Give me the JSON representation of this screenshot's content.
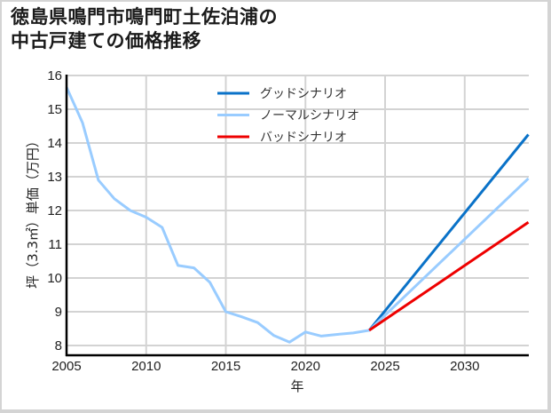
{
  "title": {
    "line1": "徳島県鳴門市鳴門町土佐泊浦の",
    "line2": "中古戸建ての価格推移"
  },
  "colors": {
    "good": "#0a72c8",
    "normal": "#99ccff",
    "bad": "#ee0000",
    "grid": "#d3d3d3",
    "axis": "#000000"
  },
  "legend": [
    {
      "key": "good",
      "label": "グッドシナリオ"
    },
    {
      "key": "normal",
      "label": "ノーマルシナリオ"
    },
    {
      "key": "bad",
      "label": "バッドシナリオ"
    }
  ],
  "chart_data": {
    "type": "line",
    "title": "徳島県鳴門市鳴門町土佐泊浦の中古戸建ての価格推移",
    "xlabel": "年",
    "ylabel": "坪（3.3㎡）単価（万円）",
    "xlim": [
      2005,
      2034
    ],
    "ylim": [
      7.7,
      16
    ],
    "xticks": [
      2005,
      2010,
      2015,
      2020,
      2025,
      2030
    ],
    "yticks": [
      8,
      9,
      10,
      11,
      12,
      13,
      14,
      15,
      16
    ],
    "grid": true,
    "legend_position": "upper center",
    "series": [
      {
        "name": "ノーマルシナリオ",
        "key": "normal",
        "x": [
          2005,
          2006,
          2007,
          2008,
          2009,
          2010,
          2011,
          2012,
          2013,
          2014,
          2015,
          2016,
          2017,
          2018,
          2019,
          2020,
          2021,
          2022,
          2023,
          2024,
          2034
        ],
        "values": [
          15.65,
          14.6,
          12.9,
          12.35,
          12.0,
          11.8,
          11.5,
          10.37,
          10.3,
          9.87,
          9.0,
          8.85,
          8.68,
          8.3,
          8.1,
          8.4,
          8.28,
          8.33,
          8.37,
          8.45,
          12.95
        ]
      },
      {
        "name": "グッドシナリオ",
        "key": "good",
        "x": [
          2024,
          2034
        ],
        "values": [
          8.45,
          14.25
        ]
      },
      {
        "name": "バッドシナリオ",
        "key": "bad",
        "x": [
          2024,
          2034
        ],
        "values": [
          8.45,
          11.65
        ]
      }
    ]
  }
}
